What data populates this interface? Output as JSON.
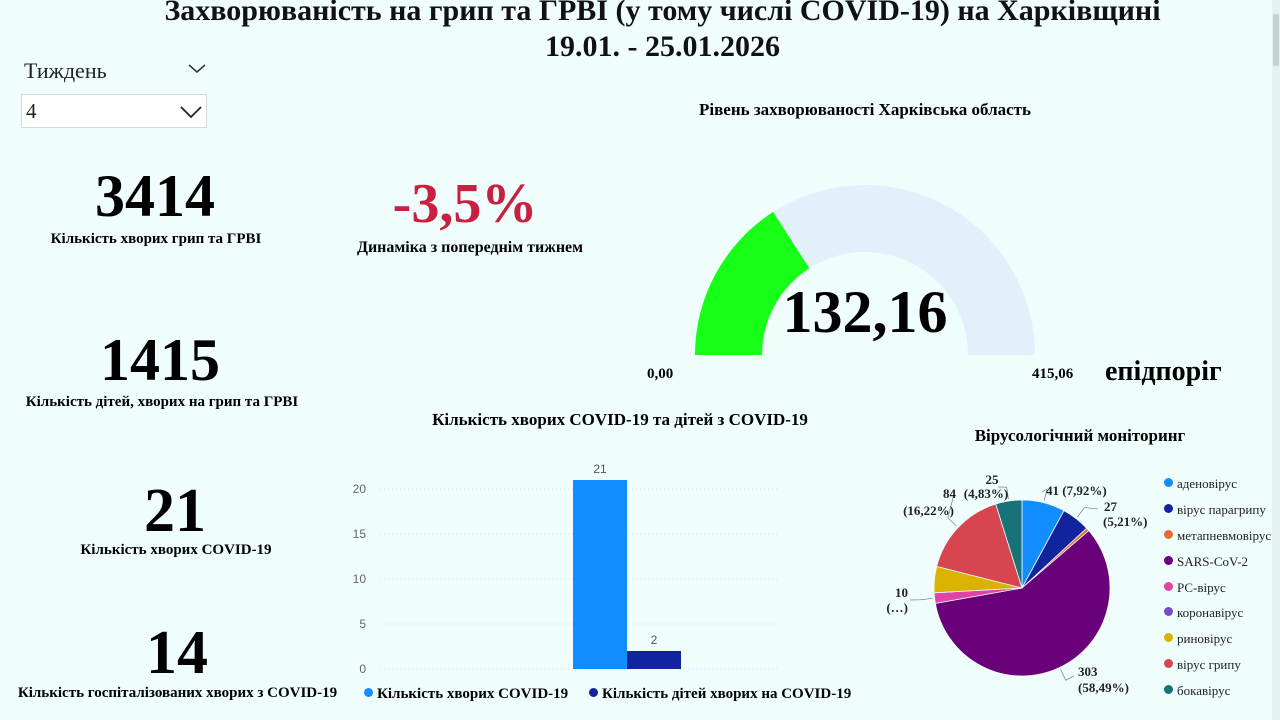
{
  "title": {
    "line1": "Захворюваність на грип та ГРВІ (у тому числі COVID-19) на Харківщині",
    "line2": "19.01. - 25.01.2026"
  },
  "slicer": {
    "label": "Тиждень",
    "value": "4"
  },
  "kpis": {
    "flu_cases": {
      "value": "3414",
      "label": "Кількість хворих грип та ГРВІ"
    },
    "children_flu": {
      "value": "1415",
      "label": "Кількість дітей, хворих на грип та ГРВІ"
    },
    "covid_cases": {
      "value": "21",
      "label": "Кількість хворих COVID-19"
    },
    "covid_hosp": {
      "value": "14",
      "label": "Кількість госпіталізованих хворих з COVID-19"
    }
  },
  "dynamics": {
    "value": "-3,5%",
    "label": "Динаміка з попереднім тижнем"
  },
  "colors": {
    "background": "#effdfd",
    "dynamics": "#c8203f",
    "gauge_fill": "#17ff17",
    "gauge_track": "#e3f0fb",
    "bar_series1": "#118dff",
    "bar_series2": "#12239e"
  },
  "chart_data": [
    {
      "type": "gauge",
      "title": "Рівень захворюваності Харківська область",
      "value": 132.16,
      "value_label": "132,16",
      "min": 0,
      "max": 415.06,
      "min_label": "0,00",
      "max_label": "415,06",
      "target_label": "епідпоріг"
    },
    {
      "type": "bar",
      "title": "Кількість хворих COVID-19 та дітей з COVID-19",
      "series": [
        {
          "name": "Кількість хворих COVID-19",
          "values": [
            21
          ],
          "color": "#118dff"
        },
        {
          "name": "Кількість дітей хворих на COVID-19",
          "values": [
            2
          ],
          "color": "#12239e"
        }
      ],
      "ylim": [
        0,
        21
      ],
      "yticks": [
        0,
        5,
        10,
        15,
        20
      ],
      "legend": "bottom"
    },
    {
      "type": "pie",
      "title": "Вірусологічний моніторинг",
      "legend": "right",
      "slices": [
        {
          "name": "аденовірус",
          "value": 41,
          "label": "41 (7,92%)",
          "color": "#118dff"
        },
        {
          "name": "вірус парагрипу",
          "value": 27,
          "label": "27 (5,21%)",
          "color": "#12239e"
        },
        {
          "name": "метапневмовірус",
          "value": 3,
          "label": "",
          "color": "#e66c37"
        },
        {
          "name": "SARS-CoV-2",
          "value": 303,
          "label": "303 (58,49%)",
          "color": "#6b007b"
        },
        {
          "name": "РС-вірус",
          "value": 10,
          "label": "10 (…)",
          "color": "#e044a7"
        },
        {
          "name": "коронавірус",
          "value": 0,
          "label": "",
          "color": "#744ec2"
        },
        {
          "name": "риновірус",
          "value": 25,
          "label": "",
          "color": "#d9b300"
        },
        {
          "name": "вірус грипу",
          "value": 84,
          "label": "84 (16,22%)",
          "color": "#d64550"
        },
        {
          "name": "бокавірус",
          "value": 25,
          "label": "25 (4,83%)",
          "color": "#197278"
        }
      ]
    }
  ]
}
